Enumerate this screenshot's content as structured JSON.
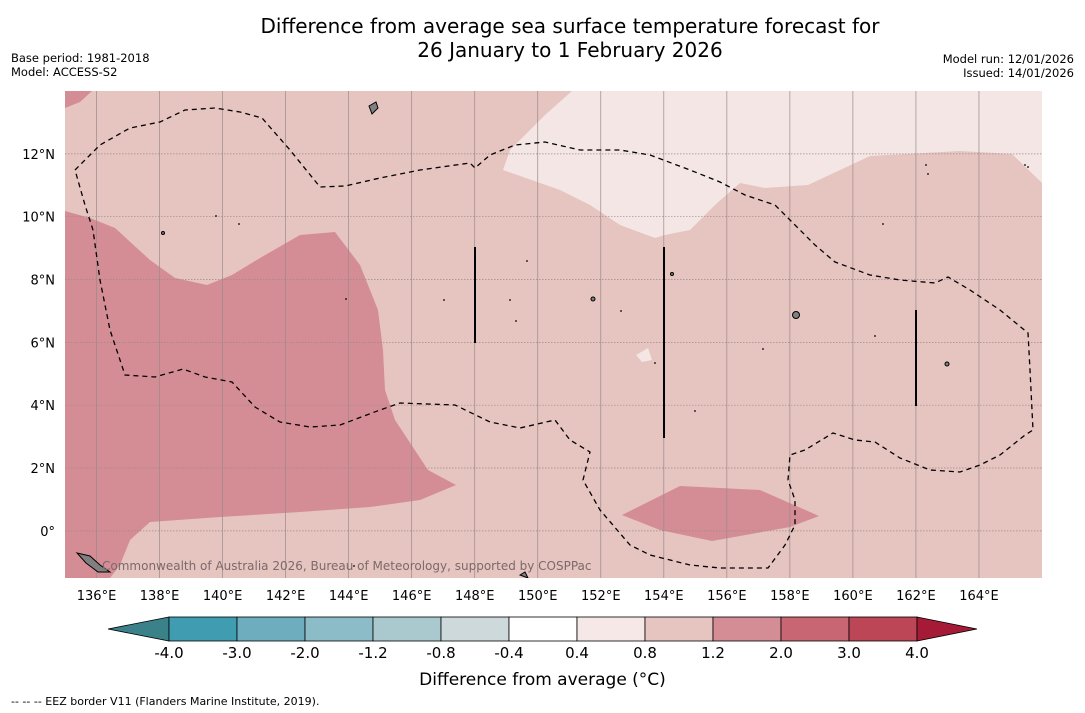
{
  "title": {
    "line1": "Difference from average sea surface temperature forecast for",
    "line2": "26 January to 1 February 2026"
  },
  "meta_left": {
    "base_period": "Base period: 1981-2018",
    "model": "Model: ACCESS-S2"
  },
  "meta_right": {
    "model_run": "Model run: 12/01/2026",
    "issued": "Issued: 14/01/2026"
  },
  "map": {
    "lon_range": [
      135,
      166
    ],
    "lat_range": [
      -1.5,
      14
    ],
    "lon_ticks": [
      "136°E",
      "138°E",
      "140°E",
      "142°E",
      "144°E",
      "146°E",
      "148°E",
      "150°E",
      "152°E",
      "154°E",
      "156°E",
      "158°E",
      "160°E",
      "162°E",
      "164°E"
    ],
    "lat_ticks": [
      "12°N",
      "10°N",
      "8°N",
      "6°N",
      "4°N",
      "2°N",
      "0°"
    ],
    "watermark": "Commonwealth of Australia 2026, Bureau of Meteorology, supported by COSPPac",
    "colors": {
      "anomaly_0.8_1.2": "#e6c4c0",
      "anomaly_1.2_2.0": "#d48d95",
      "anomaly_0.4_0.8": "#f3e6e4"
    }
  },
  "colorbar": {
    "ticks": [
      "-4.0",
      "-3.0",
      "-2.0",
      "-1.2",
      "-0.8",
      "-0.4",
      "0.4",
      "0.8",
      "1.2",
      "2.0",
      "3.0",
      "4.0"
    ],
    "colors": [
      "#3f9cb1",
      "#6eadbd",
      "#8cbcc8",
      "#aac9ce",
      "#cdd9da",
      "#ffffff",
      "#f6e8e6",
      "#e6c4c0",
      "#d48d95",
      "#c86673",
      "#bc4656"
    ],
    "under_color": "#3b8189",
    "over_color": "#a51a37",
    "label": "Difference from average (°C)"
  },
  "footnote": "--  --  -- EEZ border V11 (Flanders Marine Institute, 2019)."
}
